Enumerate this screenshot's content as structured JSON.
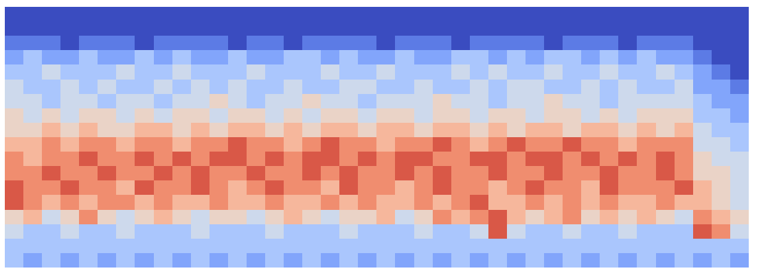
{
  "chart_data": {
    "type": "heatmap",
    "tick_labels": false,
    "color": "coolwarm",
    "value_range": [
      0,
      9
    ],
    "cells": [
      [
        0,
        0,
        0,
        0,
        0,
        0,
        0,
        0,
        0,
        0,
        0,
        0,
        0,
        0,
        0,
        0,
        0,
        0,
        0,
        0,
        0,
        0,
        0,
        0,
        0,
        0,
        0,
        0,
        0,
        0,
        0,
        0,
        0,
        0,
        0,
        0,
        0,
        0,
        0,
        0
      ],
      [
        0,
        0,
        0,
        0,
        0,
        0,
        0,
        0,
        0,
        0,
        0,
        0,
        0,
        0,
        0,
        0,
        0,
        0,
        0,
        0,
        0,
        0,
        0,
        0,
        0,
        0,
        0,
        0,
        0,
        0,
        0,
        0,
        0,
        0,
        0,
        0,
        0,
        0,
        0,
        0
      ],
      [
        1,
        1,
        1,
        0,
        1,
        1,
        1,
        0,
        1,
        1,
        1,
        1,
        0,
        1,
        1,
        0,
        1,
        1,
        1,
        1,
        0,
        1,
        1,
        1,
        0,
        1,
        1,
        1,
        1,
        0,
        1,
        1,
        1,
        0,
        1,
        1,
        1,
        0,
        0,
        0
      ],
      [
        2,
        3,
        2,
        2,
        3,
        2,
        2,
        3,
        2,
        3,
        2,
        2,
        3,
        2,
        2,
        3,
        3,
        2,
        3,
        2,
        2,
        3,
        2,
        2,
        3,
        3,
        2,
        3,
        2,
        3,
        3,
        2,
        3,
        2,
        3,
        2,
        2,
        1,
        0,
        0
      ],
      [
        3,
        3,
        4,
        3,
        3,
        3,
        4,
        3,
        3,
        4,
        3,
        3,
        3,
        4,
        3,
        3,
        3,
        4,
        3,
        3,
        4,
        3,
        3,
        3,
        4,
        3,
        4,
        3,
        3,
        4,
        3,
        3,
        4,
        3,
        3,
        4,
        3,
        2,
        1,
        0
      ],
      [
        4,
        3,
        3,
        4,
        3,
        4,
        3,
        3,
        4,
        3,
        4,
        3,
        4,
        3,
        3,
        4,
        3,
        3,
        4,
        4,
        3,
        3,
        4,
        3,
        3,
        4,
        3,
        4,
        4,
        3,
        3,
        4,
        3,
        4,
        3,
        3,
        4,
        2,
        2,
        1
      ],
      [
        4,
        4,
        3,
        4,
        4,
        3,
        4,
        4,
        3,
        4,
        4,
        5,
        4,
        3,
        4,
        4,
        5,
        4,
        4,
        3,
        4,
        4,
        4,
        5,
        4,
        4,
        3,
        4,
        4,
        5,
        4,
        4,
        3,
        4,
        4,
        4,
        4,
        3,
        2,
        2
      ],
      [
        5,
        4,
        5,
        4,
        5,
        5,
        4,
        5,
        4,
        5,
        5,
        4,
        5,
        5,
        4,
        5,
        4,
        5,
        5,
        4,
        5,
        5,
        4,
        5,
        5,
        4,
        5,
        5,
        4,
        5,
        5,
        4,
        5,
        4,
        5,
        5,
        5,
        3,
        3,
        2
      ],
      [
        5,
        5,
        6,
        5,
        6,
        5,
        5,
        6,
        6,
        5,
        6,
        5,
        6,
        6,
        5,
        6,
        5,
        6,
        6,
        5,
        6,
        6,
        5,
        6,
        6,
        5,
        6,
        5,
        6,
        6,
        5,
        6,
        6,
        5,
        6,
        5,
        6,
        4,
        3,
        3
      ],
      [
        6,
        6,
        7,
        6,
        7,
        7,
        6,
        7,
        7,
        6,
        7,
        7,
        8,
        7,
        7,
        6,
        7,
        8,
        7,
        7,
        6,
        7,
        7,
        8,
        7,
        6,
        7,
        8,
        7,
        7,
        8,
        7,
        7,
        6,
        7,
        7,
        7,
        4,
        4,
        3
      ],
      [
        7,
        6,
        7,
        7,
        8,
        7,
        7,
        8,
        7,
        8,
        7,
        8,
        8,
        7,
        8,
        7,
        8,
        8,
        7,
        8,
        7,
        8,
        8,
        7,
        7,
        8,
        8,
        7,
        8,
        8,
        7,
        8,
        7,
        8,
        7,
        8,
        7,
        5,
        4,
        4
      ],
      [
        7,
        7,
        8,
        7,
        7,
        8,
        7,
        7,
        8,
        7,
        8,
        7,
        7,
        8,
        7,
        7,
        8,
        7,
        8,
        7,
        7,
        8,
        7,
        8,
        7,
        7,
        8,
        7,
        7,
        8,
        7,
        7,
        8,
        7,
        7,
        8,
        7,
        5,
        5,
        4
      ],
      [
        8,
        7,
        7,
        8,
        7,
        7,
        6,
        8,
        7,
        7,
        8,
        7,
        6,
        7,
        8,
        7,
        7,
        6,
        8,
        7,
        7,
        6,
        7,
        8,
        7,
        7,
        6,
        7,
        8,
        7,
        7,
        6,
        8,
        7,
        7,
        7,
        8,
        6,
        5,
        4
      ],
      [
        8,
        7,
        6,
        7,
        6,
        7,
        7,
        6,
        7,
        6,
        6,
        7,
        6,
        6,
        7,
        6,
        6,
        7,
        6,
        7,
        6,
        6,
        7,
        6,
        7,
        8,
        6,
        6,
        7,
        6,
        7,
        6,
        7,
        6,
        6,
        7,
        6,
        6,
        5,
        4
      ],
      [
        5,
        6,
        4,
        5,
        7,
        5,
        4,
        5,
        6,
        5,
        4,
        5,
        5,
        4,
        5,
        6,
        5,
        4,
        5,
        5,
        6,
        4,
        5,
        7,
        6,
        7,
        8,
        6,
        5,
        6,
        7,
        5,
        6,
        5,
        6,
        5,
        4,
        7,
        6,
        5
      ],
      [
        4,
        3,
        3,
        4,
        3,
        3,
        4,
        3,
        3,
        3,
        4,
        3,
        3,
        3,
        4,
        3,
        3,
        3,
        4,
        3,
        3,
        3,
        4,
        3,
        3,
        4,
        8,
        4,
        3,
        3,
        4,
        3,
        3,
        4,
        3,
        3,
        3,
        8,
        7,
        4
      ],
      [
        3,
        3,
        3,
        3,
        3,
        3,
        3,
        3,
        3,
        3,
        3,
        3,
        3,
        3,
        3,
        3,
        3,
        3,
        3,
        3,
        3,
        3,
        3,
        3,
        3,
        3,
        3,
        3,
        3,
        3,
        3,
        3,
        3,
        3,
        3,
        3,
        3,
        3,
        3,
        3
      ],
      [
        3,
        2,
        3,
        2,
        3,
        2,
        3,
        2,
        3,
        2,
        3,
        2,
        3,
        2,
        3,
        2,
        3,
        2,
        3,
        2,
        3,
        2,
        3,
        2,
        3,
        2,
        3,
        2,
        3,
        2,
        3,
        2,
        3,
        2,
        3,
        2,
        3,
        2,
        3,
        2
      ]
    ]
  }
}
